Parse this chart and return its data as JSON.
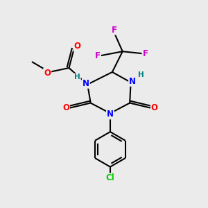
{
  "bg_color": "#ebebeb",
  "atom_colors": {
    "C": "#000000",
    "N": "#0000ff",
    "O": "#ff0000",
    "F": "#cc00cc",
    "Cl": "#00cc00",
    "H": "#008080"
  },
  "bond_color": "#000000",
  "bond_width": 1.5
}
